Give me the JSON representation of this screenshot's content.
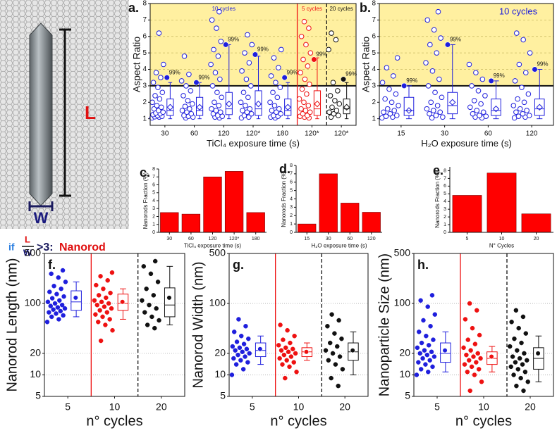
{
  "illustration": {
    "length_label": "L",
    "width_label": "W",
    "rule_if": "if",
    "rule_num": "L",
    "rule_den": "W",
    "rule_cond": ">3:",
    "rule_result": "Nanorod"
  },
  "chart_data": [
    {
      "type": "box-scatter",
      "panel_label": "a.",
      "ylabel": "Aspect Ratio",
      "xlabel": "TiCl₄ exposure time (s)",
      "ylim": [
        0.6,
        8
      ],
      "yticks": [
        1,
        2,
        3,
        4,
        5,
        6,
        7,
        8
      ],
      "threshold": 3,
      "highlight_color": "#fff0a0",
      "markers": "open",
      "mean_marker": "diamond",
      "frame": true,
      "sections": [
        {
          "label": "10 cycles",
          "color": "#1f1fdd"
        },
        {
          "label": "5 cycles",
          "color": "#ee1111"
        },
        {
          "label": "20 cycles",
          "color": "#111111"
        }
      ],
      "categories": [
        "30",
        "60",
        "120",
        "120*",
        "180",
        "120*",
        "120*"
      ],
      "groups": [
        {
          "color": "#1f1fdd",
          "points": [
            1.05,
            1.1,
            1.12,
            1.15,
            1.2,
            1.25,
            1.3,
            1.35,
            1.4,
            1.5,
            1.6,
            1.7,
            1.8,
            2.0,
            2.2,
            2.4,
            2.6,
            2.9,
            3.2,
            3.5,
            3.8,
            4.3,
            6.2
          ],
          "whisker_low": 1.0,
          "q1": 1.2,
          "median": 1.5,
          "q3": 2.2,
          "whisker_high": 3.2,
          "mean": 1.7,
          "p99": 3.5,
          "p99_label": "99%"
        },
        {
          "color": "#1f1fdd",
          "points": [
            1.05,
            1.1,
            1.15,
            1.2,
            1.3,
            1.4,
            1.5,
            1.6,
            1.75,
            1.9,
            2.1,
            2.4,
            2.7,
            3.0,
            3.3,
            3.7,
            4.8
          ],
          "whisker_low": 1.0,
          "q1": 1.2,
          "median": 1.5,
          "q3": 2.3,
          "whisker_high": 3.2,
          "mean": 1.7,
          "p99": 3.2,
          "p99_label": "99%"
        },
        {
          "color": "#1f1fdd",
          "points": [
            1.05,
            1.1,
            1.15,
            1.2,
            1.3,
            1.4,
            1.5,
            1.6,
            1.8,
            2.0,
            2.3,
            2.6,
            3.0,
            3.4,
            3.8,
            4.3,
            4.8,
            5.2,
            5.7,
            6.5,
            7.0,
            7.5
          ],
          "whisker_low": 1.0,
          "q1": 1.25,
          "median": 1.6,
          "q3": 2.6,
          "whisker_high": 5.5,
          "mean": 1.9,
          "p99": 5.5,
          "p99_label": "99%"
        },
        {
          "color": "#1f1fdd",
          "points": [
            1.05,
            1.1,
            1.2,
            1.3,
            1.4,
            1.5,
            1.6,
            1.8,
            2.0,
            2.3,
            2.6,
            3.0,
            3.4,
            3.9,
            4.4,
            5.0,
            5.5,
            6.1
          ],
          "whisker_low": 1.0,
          "q1": 1.2,
          "median": 1.6,
          "q3": 2.7,
          "whisker_high": 4.8,
          "mean": 1.9,
          "p99": 4.9,
          "p99_label": "99%"
        },
        {
          "color": "#1f1fdd",
          "points": [
            1.05,
            1.1,
            1.15,
            1.2,
            1.3,
            1.4,
            1.5,
            1.6,
            1.8,
            2.0,
            2.3,
            2.6,
            2.9,
            3.2,
            3.6,
            4.1,
            4.7,
            5.2
          ],
          "whisker_low": 1.0,
          "q1": 1.2,
          "median": 1.5,
          "q3": 2.2,
          "whisker_high": 3.2,
          "mean": 1.7,
          "p99": 3.5,
          "p99_label": "99%"
        },
        {
          "color": "#ee1111",
          "points": [
            1.05,
            1.1,
            1.15,
            1.2,
            1.3,
            1.4,
            1.5,
            1.6,
            1.8,
            2.0,
            2.2,
            2.5,
            2.8,
            3.1,
            3.4,
            3.8,
            4.2,
            4.6,
            5.0,
            5.5,
            6.0,
            6.5,
            6.9
          ],
          "whisker_low": 1.0,
          "q1": 1.2,
          "median": 1.6,
          "q3": 2.7,
          "whisker_high": 4.7,
          "mean": 1.9,
          "p99": 4.6,
          "p99_label": "99%"
        },
        {
          "color": "#111111",
          "points": [
            1.1,
            1.2,
            1.3,
            1.4,
            1.5,
            1.7,
            1.9,
            2.1,
            2.4,
            2.7,
            3.2,
            5.2,
            5.8,
            6.2
          ],
          "whisker_low": 1.0,
          "q1": 1.3,
          "median": 1.6,
          "q3": 2.2,
          "whisker_high": 3.2,
          "mean": 1.7,
          "p99": 3.4,
          "p99_label": "99%"
        }
      ]
    },
    {
      "type": "box-scatter",
      "panel_label": "b.",
      "ylabel": "Aspect Ratio",
      "xlabel": "H₂O exposure time (s)",
      "ylim": [
        0.6,
        8
      ],
      "yticks": [
        1,
        2,
        3,
        4,
        5,
        6,
        7,
        8
      ],
      "threshold": 3,
      "highlight_color": "#fff0a0",
      "markers": "open",
      "mean_marker": "diamond",
      "frame": true,
      "sections": [
        {
          "label": "10 cycles",
          "color": "#1f1fdd"
        }
      ],
      "categories": [
        "15",
        "30",
        "60",
        "120"
      ],
      "groups": [
        {
          "color": "#1f1fdd",
          "points": [
            1.05,
            1.1,
            1.15,
            1.2,
            1.3,
            1.4,
            1.5,
            1.6,
            1.8,
            2.0,
            2.2,
            2.5,
            2.8,
            3.2,
            3.6,
            4.1,
            4.7
          ],
          "whisker_low": 1.0,
          "q1": 1.2,
          "median": 1.5,
          "q3": 2.3,
          "whisker_high": 3.0,
          "mean": 1.5,
          "p99": 3.0,
          "p99_label": "99%"
        },
        {
          "color": "#1f1fdd",
          "points": [
            1.05,
            1.1,
            1.2,
            1.3,
            1.4,
            1.5,
            1.6,
            1.8,
            2.0,
            2.3,
            2.6,
            3.0,
            3.4,
            3.9,
            4.4,
            5.0,
            5.5,
            5.9,
            6.4,
            7.0,
            7.5
          ],
          "whisker_low": 1.0,
          "q1": 1.3,
          "median": 1.8,
          "q3": 2.6,
          "whisker_high": 5.5,
          "mean": 2.0,
          "p99": 5.5,
          "p99_label": "99%"
        },
        {
          "color": "#1f1fdd",
          "points": [
            1.05,
            1.1,
            1.15,
            1.2,
            1.3,
            1.4,
            1.5,
            1.7,
            1.9,
            2.1,
            2.4,
            2.7,
            3.0,
            3.4,
            3.8,
            4.3
          ],
          "whisker_low": 1.0,
          "q1": 1.2,
          "median": 1.5,
          "q3": 2.2,
          "whisker_high": 3.3,
          "mean": 1.6,
          "p99": 3.3,
          "p99_label": "99%"
        },
        {
          "color": "#1f1fdd",
          "points": [
            1.05,
            1.1,
            1.15,
            1.2,
            1.3,
            1.4,
            1.5,
            1.6,
            1.8,
            2.0,
            2.2,
            2.5,
            2.9,
            3.3,
            3.8,
            4.3,
            5.0,
            5.8,
            6.2
          ],
          "whisker_low": 1.0,
          "q1": 1.2,
          "median": 1.6,
          "q3": 2.2,
          "whisker_high": 4.0,
          "mean": 1.7,
          "p99": 4.0,
          "p99_label": "99%"
        }
      ]
    },
    {
      "type": "bar",
      "panel_label": "c.",
      "ylabel": "Nanorods Fraction (%)",
      "xlabel": "TiCl₄ exposure time (s)",
      "categories": [
        "30",
        "60",
        "120",
        "120*",
        "180"
      ],
      "values": [
        2.5,
        2.3,
        7.0,
        7.7,
        2.5
      ],
      "color": "#ff0000",
      "ylim": [
        0,
        8
      ],
      "yticks": [
        0,
        1,
        2,
        3,
        4,
        5,
        6,
        7,
        8
      ]
    },
    {
      "type": "bar",
      "panel_label": "d.",
      "ylabel": "Nanorods Fraction (%)",
      "xlabel": "H₂O exposure time (s)",
      "categories": [
        "15",
        "30",
        "60",
        "120"
      ],
      "values": [
        1.0,
        7.0,
        3.5,
        2.4
      ],
      "color": "#ff0000",
      "ylim": [
        0,
        8
      ],
      "yticks": [
        0,
        1,
        2,
        3,
        4,
        5,
        6,
        7,
        8
      ]
    },
    {
      "type": "bar",
      "panel_label": "e.",
      "ylabel": "Nanorods Fraction (%)",
      "xlabel": "N° Cycles",
      "categories": [
        "5",
        "10",
        "20"
      ],
      "values": [
        4.8,
        7.7,
        2.4
      ],
      "color": "#ff0000",
      "ylim": [
        0,
        8.5
      ],
      "yticks": [
        0,
        1,
        2,
        3,
        4,
        5,
        6,
        7,
        8
      ]
    },
    {
      "type": "box-scatter",
      "panel_label": "f.",
      "ylabel": "Nanorod Length (nm)",
      "xlabel": "n° cycles",
      "log": true,
      "grid": true,
      "ylim": [
        5,
        500
      ],
      "yticks": [
        5,
        10,
        20,
        100,
        500
      ],
      "markers": "filled",
      "mean_marker": "dot",
      "frame": true,
      "categories": [
        "5",
        "10",
        "20"
      ],
      "groups": [
        {
          "color": "#1f1fdd",
          "points": [
            55,
            60,
            65,
            68,
            72,
            75,
            78,
            82,
            85,
            88,
            92,
            95,
            100,
            105,
            110,
            118,
            125,
            135,
            145,
            160,
            175,
            200,
            230,
            260,
            290
          ],
          "whisker_low": 65,
          "q1": 80,
          "median": 105,
          "q3": 150,
          "whisker_high": 200,
          "mean": 120
        },
        {
          "color": "#ee1111",
          "points": [
            30,
            42,
            50,
            55,
            60,
            65,
            70,
            75,
            80,
            85,
            90,
            95,
            100,
            105,
            110,
            120,
            130,
            140,
            160,
            180,
            210,
            240,
            270
          ],
          "whisker_low": 60,
          "q1": 80,
          "median": 100,
          "q3": 135,
          "whisker_high": 160,
          "mean": 105
        },
        {
          "color": "#111111",
          "points": [
            45,
            50,
            58,
            65,
            75,
            85,
            95,
            110,
            130,
            160,
            200,
            260,
            330,
            390
          ],
          "whisker_low": 50,
          "q1": 65,
          "median": 95,
          "q3": 165,
          "whisker_high": 330,
          "mean": 120
        }
      ]
    },
    {
      "type": "box-scatter",
      "panel_label": "g.",
      "ylabel": "Nanorod Width (nm)",
      "xlabel": "n° cycles",
      "log": true,
      "grid": true,
      "ylim": [
        5,
        500
      ],
      "yticks": [
        5,
        10,
        20,
        100,
        500
      ],
      "markers": "filled",
      "mean_marker": "dot",
      "frame": true,
      "categories": [
        "5",
        "10",
        "20"
      ],
      "groups": [
        {
          "color": "#1f1fdd",
          "points": [
            10,
            12,
            14,
            15,
            16,
            17,
            18,
            19,
            20,
            21,
            22,
            23,
            24,
            25,
            27,
            29,
            32,
            35,
            40,
            48,
            60
          ],
          "whisker_low": 14,
          "q1": 18,
          "median": 22,
          "q3": 28,
          "whisker_high": 35,
          "mean": 23
        },
        {
          "color": "#ee1111",
          "points": [
            9,
            11,
            13,
            14,
            15,
            16,
            17,
            18,
            19,
            20,
            21,
            22,
            23,
            24,
            26,
            28,
            31,
            35,
            42,
            50
          ],
          "whisker_low": 16,
          "q1": 18,
          "median": 21,
          "q3": 24,
          "whisker_high": 28,
          "mean": 21
        },
        {
          "color": "#111111",
          "points": [
            7,
            9,
            12,
            14,
            16,
            18,
            20,
            22,
            25,
            28,
            32,
            38,
            48,
            58,
            70
          ],
          "whisker_low": 10,
          "q1": 16,
          "median": 21,
          "q3": 28,
          "whisker_high": 40,
          "mean": 22
        }
      ]
    },
    {
      "type": "box-scatter",
      "panel_label": "h.",
      "ylabel": "Nanoparticle Size (nm)",
      "xlabel": "n° cycles",
      "log": true,
      "grid": true,
      "ylim": [
        5,
        500
      ],
      "yticks": [
        5,
        10,
        20,
        100,
        500
      ],
      "markers": "filled",
      "mean_marker": "dot",
      "frame": true,
      "categories": [
        "5",
        "10",
        "20"
      ],
      "groups": [
        {
          "color": "#1f1fdd",
          "points": [
            10,
            11,
            12,
            13,
            14,
            15,
            16,
            17,
            18,
            19,
            20,
            21,
            22,
            24,
            26,
            28,
            31,
            35,
            40,
            48,
            58,
            70,
            90,
            110,
            130
          ],
          "whisker_low": 11,
          "q1": 15,
          "median": 20,
          "q3": 28,
          "whisker_high": 40,
          "mean": 22
        },
        {
          "color": "#ee1111",
          "points": [
            6,
            8,
            10,
            11,
            12,
            13,
            14,
            15,
            16,
            17,
            18,
            19,
            20,
            22,
            24,
            27,
            31,
            36,
            45,
            60,
            80,
            100
          ],
          "whisker_low": 11,
          "q1": 14,
          "median": 17,
          "q3": 21,
          "whisker_high": 25,
          "mean": 18
        },
        {
          "color": "#111111",
          "points": [
            6,
            7,
            8,
            9,
            10,
            11,
            12,
            13,
            14,
            15,
            16,
            17,
            18,
            20,
            22,
            25,
            28,
            32,
            38,
            45,
            55,
            65,
            80
          ],
          "whisker_low": 8,
          "q1": 12,
          "median": 17,
          "q3": 24,
          "whisker_high": 35,
          "mean": 20
        }
      ]
    }
  ]
}
